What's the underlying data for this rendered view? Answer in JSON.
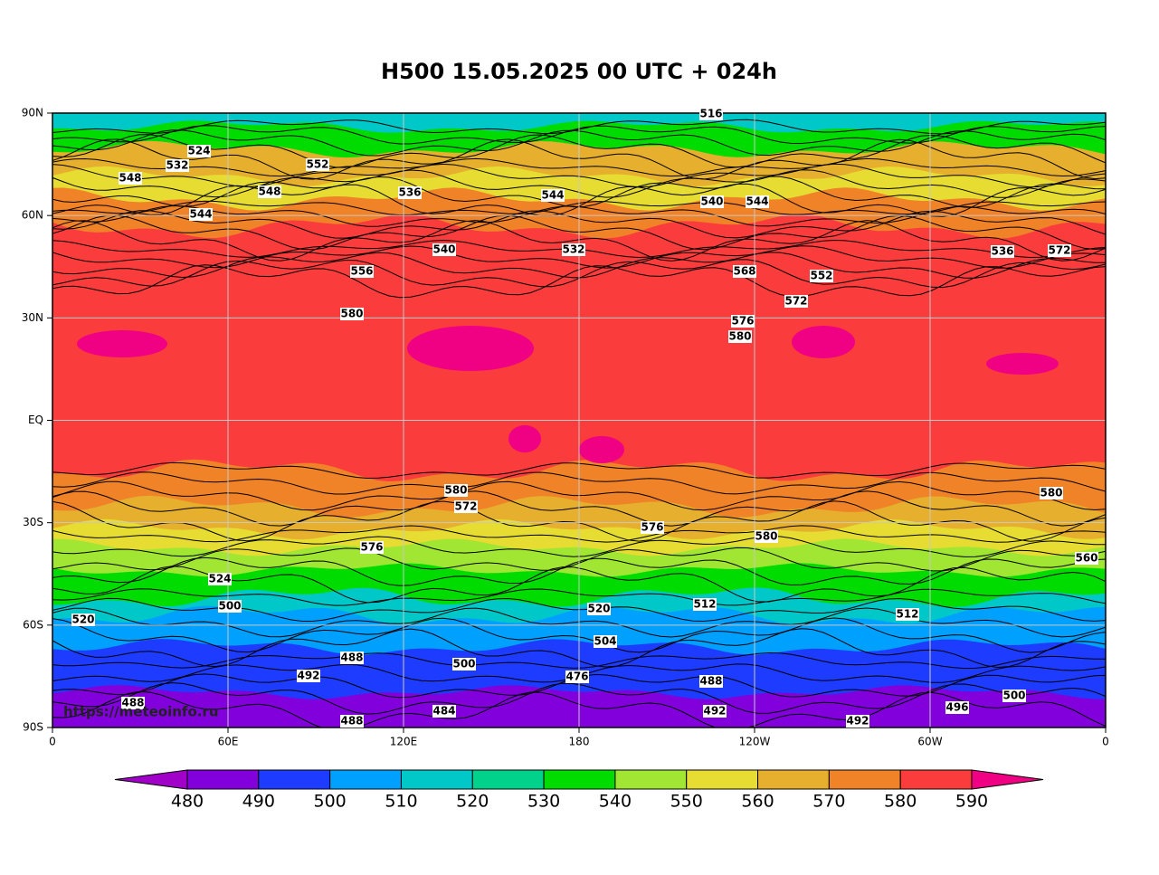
{
  "title": "H500  15.05.2025 00 UTC + 024h",
  "map": {
    "lat_labels": [
      "90N",
      "60N",
      "30N",
      "EQ",
      "30S",
      "60S",
      "90S"
    ],
    "lon_labels": [
      "0",
      "60E",
      "120E",
      "180",
      "120W",
      "60W",
      "0"
    ],
    "contour_labels": [
      "516",
      "524",
      "532",
      "548",
      "544",
      "548",
      "552",
      "536",
      "544",
      "540",
      "544",
      "556",
      "540",
      "532",
      "568",
      "552",
      "572",
      "580",
      "576",
      "580",
      "572",
      "536",
      "580",
      "580",
      "572",
      "576",
      "576",
      "580",
      "524",
      "500",
      "520",
      "488",
      "492",
      "500",
      "484",
      "476",
      "488",
      "492",
      "492",
      "496",
      "500",
      "512",
      "512",
      "504",
      "488",
      "488",
      "560",
      "520"
    ],
    "watermark": "https://meteoinfo.ru"
  },
  "colorbar": {
    "levels": [
      480,
      490,
      500,
      510,
      520,
      530,
      540,
      550,
      560,
      570,
      580,
      590
    ],
    "colors": [
      "#a000c8",
      "#8200dc",
      "#1e3cff",
      "#00a0ff",
      "#00c8c8",
      "#00d28c",
      "#00dc00",
      "#a0e632",
      "#e6dc32",
      "#e6af2d",
      "#f08228",
      "#fa3c3c",
      "#f00082"
    ]
  }
}
